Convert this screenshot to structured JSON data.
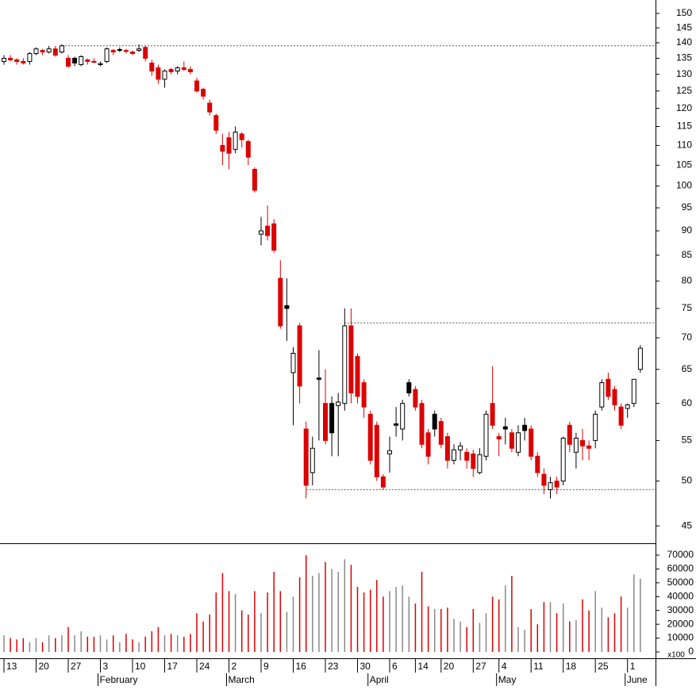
{
  "chart_data": {
    "type": "candlestick",
    "log_scale": true,
    "ylim": [
      43.2,
      154.8
    ],
    "yticks": [
      45,
      50,
      55,
      60,
      65,
      70,
      75,
      80,
      85,
      90,
      95,
      100,
      105,
      110,
      115,
      120,
      125,
      130,
      135,
      140,
      145,
      150
    ],
    "volume_ylim": [
      0,
      78000
    ],
    "volume_yticks": [
      0,
      10000,
      20000,
      30000,
      40000,
      50000,
      60000,
      70000
    ],
    "volume_unit_label": "x100",
    "colors": {
      "up": "#ffffff",
      "down": "#dd0000",
      "other": "#000000",
      "volume_other": "#888888"
    },
    "categories": [
      "13",
      null,
      null,
      null,
      null,
      "20",
      null,
      null,
      null,
      null,
      "27",
      null,
      null,
      null,
      null,
      "3",
      null,
      null,
      null,
      null,
      "10",
      null,
      null,
      null,
      null,
      "17",
      null,
      null,
      null,
      null,
      "24",
      null,
      null,
      null,
      null,
      "2",
      null,
      null,
      null,
      null,
      "9",
      null,
      null,
      null,
      null,
      "16",
      null,
      null,
      null,
      null,
      "23",
      null,
      null,
      null,
      null,
      "30",
      null,
      null,
      null,
      null,
      "6",
      null,
      null,
      null,
      "14",
      null,
      null,
      null,
      "20",
      null,
      null,
      null,
      null,
      "27",
      null,
      null,
      null,
      "4",
      null,
      null,
      null,
      null,
      "11",
      null,
      null,
      null,
      null,
      "18",
      null,
      null,
      null,
      null,
      "25",
      null,
      null,
      null,
      null,
      "1",
      null,
      null
    ],
    "months": [
      {
        "name": "February",
        "at": 15
      },
      {
        "name": "March",
        "at": 35
      },
      {
        "name": "April",
        "at": 57
      },
      {
        "name": "May",
        "at": 77
      },
      {
        "name": "June",
        "at": 97
      }
    ],
    "reference_lines": [
      {
        "value": 139,
        "from": 9
      },
      {
        "value": 72.5,
        "from": 53
      },
      {
        "value": 49,
        "from": 47
      }
    ],
    "open": [
      134,
      135,
      134.5,
      134,
      134,
      136.5,
      137.5,
      137,
      138,
      137,
      135,
      135,
      133,
      134.5,
      134,
      133,
      134,
      137.5,
      137.8,
      137.5,
      137,
      137.5,
      138.5,
      133.5,
      132,
      128.5,
      131.5,
      131,
      132,
      131.5,
      128,
      125.5,
      121.5,
      118,
      110,
      112,
      109,
      113,
      111,
      104,
      89.3,
      91,
      91.5,
      80.5,
      75.5,
      64.5,
      72,
      56.5,
      51,
      63.7,
      60,
      60,
      59.7,
      60,
      72,
      67,
      63,
      58.5,
      57,
      50.5,
      53.3,
      57.2,
      56.5,
      63,
      62,
      60,
      56,
      58.5,
      57.5,
      55.5,
      52.5,
      53.8,
      53.5,
      53.3,
      51,
      53,
      60,
      55.5,
      56.8,
      56,
      53.5,
      57,
      56.5,
      53,
      50.8,
      49,
      50,
      50,
      57,
      53.5,
      55,
      54.3,
      55,
      59.5,
      63.5,
      62,
      59.5,
      59.3,
      60,
      65
    ],
    "high": [
      136,
      136,
      135,
      135,
      137,
      138.5,
      138,
      139,
      139,
      139.5,
      136,
      135.5,
      136,
      135,
      135,
      134,
      138.5,
      138,
      138.5,
      138,
      137.5,
      139.5,
      139,
      134.5,
      133,
      131.5,
      132,
      132.5,
      134,
      132.5,
      129,
      126,
      122.5,
      118.5,
      113,
      113.5,
      115,
      113.5,
      111.5,
      104.5,
      93,
      95.5,
      92.5,
      84,
      80.5,
      68.5,
      72.5,
      57.5,
      55.5,
      68,
      65,
      61,
      61.5,
      75,
      75,
      67.5,
      63.5,
      59,
      57.5,
      50.8,
      55.5,
      59.5,
      60.5,
      63.5,
      62.5,
      60.5,
      56.5,
      59,
      58,
      56,
      54.5,
      54.8,
      54,
      53.8,
      54,
      59,
      65.5,
      56,
      58,
      56.5,
      57,
      58,
      57,
      53.5,
      51.5,
      50.5,
      50.5,
      55.5,
      57.5,
      56,
      56.5,
      55,
      59,
      63.5,
      64.5,
      62.5,
      60,
      60,
      63.5,
      68.8
    ],
    "low": [
      133,
      134,
      133,
      133,
      133,
      136,
      136,
      136.5,
      135.5,
      136.5,
      132,
      132.5,
      132.5,
      133,
      133.5,
      132.5,
      133.5,
      136,
      137,
      136.5,
      136,
      137,
      134,
      129.5,
      127,
      126,
      130,
      130,
      131,
      130,
      124.5,
      122.5,
      118,
      113,
      105,
      104,
      108,
      109.5,
      105,
      98.5,
      87,
      88,
      85.5,
      71.5,
      69.5,
      57,
      60,
      48,
      49.5,
      55,
      54.5,
      53,
      53,
      59,
      60,
      60,
      58,
      52,
      50,
      49,
      51,
      55.5,
      55,
      61,
      59,
      54,
      52,
      55.5,
      54,
      51.5,
      52,
      52.5,
      51.5,
      50.5,
      50.8,
      52.5,
      56.5,
      53,
      54.5,
      53.5,
      53,
      55,
      52.5,
      50.5,
      48.5,
      48,
      48.5,
      49.5,
      53.5,
      51.5,
      52.5,
      52.5,
      54,
      59,
      60.5,
      59,
      56.5,
      58,
      59.5,
      64.5
    ],
    "close": [
      135,
      134.5,
      134,
      133.5,
      136.5,
      138,
      137,
      138,
      136,
      139,
      132.5,
      133.5,
      135.5,
      134,
      133.7,
      133.3,
      138,
      137,
      137.5,
      137.2,
      136.5,
      138,
      135,
      131,
      128.5,
      131,
      130.8,
      132,
      131.5,
      130.8,
      125,
      123.5,
      119,
      114,
      108.5,
      108,
      113.5,
      111.5,
      107,
      99,
      90,
      89,
      86,
      72,
      75,
      67.5,
      62.5,
      49.5,
      54,
      63.5,
      55,
      56,
      60.2,
      72,
      61.5,
      61,
      59.5,
      52.5,
      50.5,
      49.3,
      53.7,
      57,
      60,
      61.5,
      59.5,
      54.5,
      53,
      56.5,
      54.5,
      52.5,
      53.8,
      54.3,
      52.5,
      51.5,
      53.2,
      58.5,
      57,
      55.2,
      56.5,
      54,
      56,
      56.3,
      53,
      51,
      49.5,
      49.8,
      49.3,
      55.3,
      54.5,
      55.3,
      54.3,
      54,
      58.5,
      63,
      61,
      59.8,
      57,
      59.8,
      63.5,
      68.3
    ],
    "volume": [
      12000,
      10000,
      9000,
      10000,
      7000,
      10000,
      7000,
      12000,
      10000,
      12000,
      18000,
      12000,
      15000,
      11000,
      11000,
      12000,
      9000,
      12000,
      7000,
      13000,
      9000,
      7000,
      11000,
      15000,
      18000,
      12000,
      13000,
      12000,
      11000,
      13000,
      28000,
      22000,
      27000,
      43000,
      57000,
      44000,
      42000,
      30000,
      27000,
      44000,
      28000,
      43000,
      58000,
      44000,
      29000,
      40000,
      54000,
      70000,
      55000,
      57000,
      65000,
      60000,
      58000,
      67000,
      63000,
      47000,
      43000,
      45000,
      52000,
      40000,
      44000,
      47000,
      48000,
      40000,
      35000,
      58000,
      33000,
      31000,
      31000,
      32000,
      24000,
      22000,
      18000,
      31000,
      21000,
      28000,
      40000,
      38000,
      48000,
      55000,
      18000,
      16000,
      31000,
      20000,
      36000,
      36000,
      28000,
      35000,
      22000,
      23000,
      38000,
      30000,
      44000,
      32000,
      25000,
      28000,
      40000,
      32000,
      56000,
      53000
    ]
  }
}
